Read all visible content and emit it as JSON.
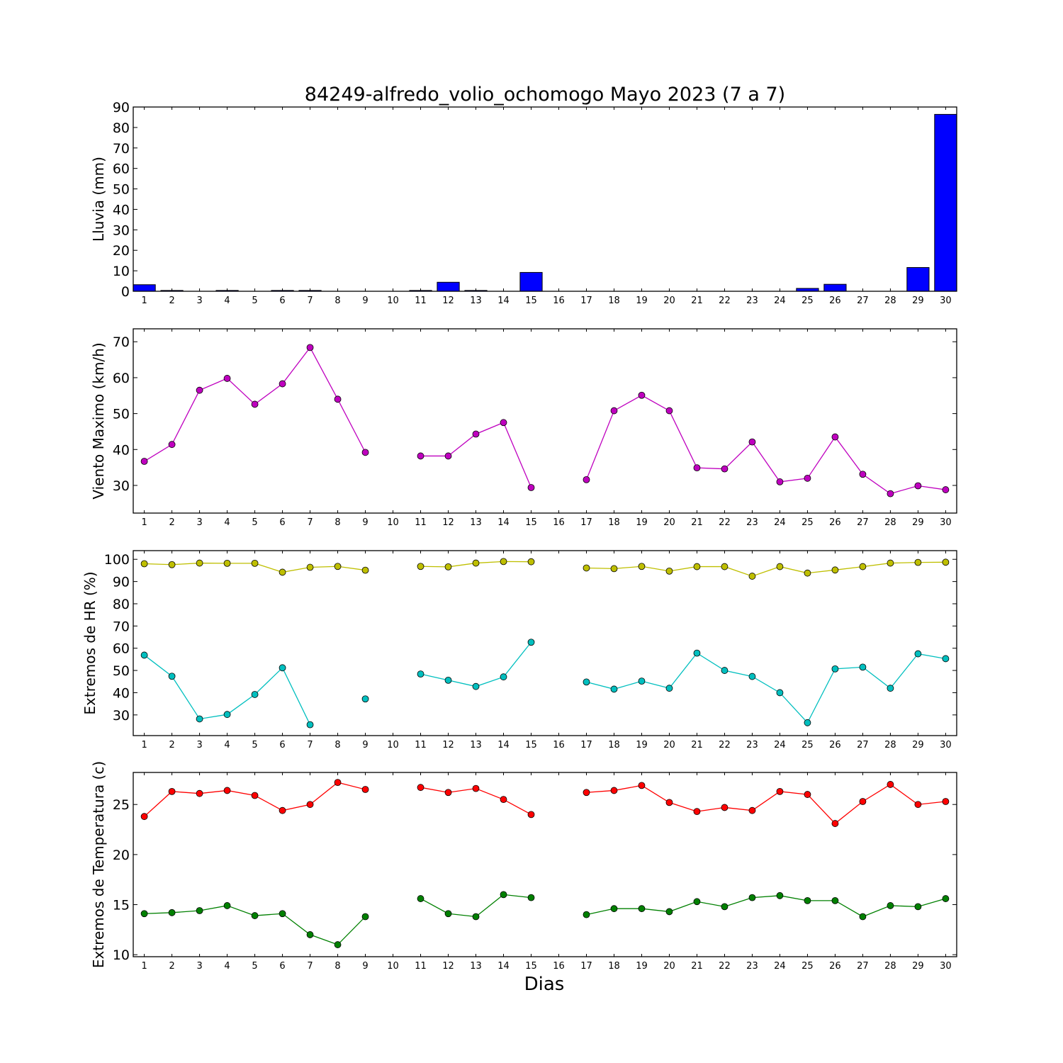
{
  "title": "84249-alfredo_volio_ochomogo Mayo 2023  (7 a 7)",
  "xlabel": "Dias",
  "chart_data": [
    {
      "type": "bar",
      "title": "84249-alfredo_volio_ochomogo Mayo 2023  (7 a 7)",
      "ylabel": "Lluvia (mm)",
      "xlabel": "",
      "x": [
        1,
        2,
        3,
        4,
        5,
        6,
        7,
        8,
        9,
        10,
        11,
        12,
        13,
        14,
        15,
        16,
        17,
        18,
        19,
        20,
        21,
        22,
        23,
        24,
        25,
        26,
        27,
        28,
        29,
        30
      ],
      "values": [
        3.2,
        0.4,
        0,
        0.4,
        0,
        0.4,
        0.4,
        0,
        0,
        0,
        0.4,
        4.4,
        0.4,
        0,
        9.2,
        0,
        0,
        0,
        0,
        0,
        0,
        0,
        0,
        0,
        1.4,
        3.4,
        0,
        0,
        11.6,
        86.4
      ],
      "ylim": [
        0,
        90
      ],
      "yticks": [
        0,
        10,
        20,
        30,
        40,
        50,
        60,
        70,
        80,
        90
      ],
      "grid": false,
      "color": "#0000ff"
    },
    {
      "type": "line",
      "ylabel": "Viento Maximo (km/h)",
      "x": [
        1,
        2,
        3,
        4,
        5,
        6,
        7,
        8,
        9,
        10,
        11,
        12,
        13,
        14,
        15,
        16,
        17,
        18,
        19,
        20,
        21,
        22,
        23,
        24,
        25,
        26,
        27,
        28,
        29,
        30
      ],
      "series": [
        {
          "color": "#bf00bf",
          "values": [
            36.7,
            41.4,
            56.5,
            59.8,
            52.6,
            58.3,
            68.4,
            54.0,
            39.2,
            null,
            38.2,
            38.2,
            44.3,
            47.5,
            29.4,
            null,
            31.6,
            50.8,
            55.1,
            50.8,
            34.9,
            34.6,
            42.1,
            31.0,
            32.0,
            43.5,
            33.1,
            27.7,
            29.9,
            28.8
          ]
        }
      ],
      "ylim": [
        22.3,
        73.6
      ],
      "yticks": [
        30,
        40,
        50,
        60,
        70
      ],
      "grid": false
    },
    {
      "type": "line",
      "ylabel": "Extremos de HR (%)",
      "x": [
        1,
        2,
        3,
        4,
        5,
        6,
        7,
        8,
        9,
        10,
        11,
        12,
        13,
        14,
        15,
        16,
        17,
        18,
        19,
        20,
        21,
        22,
        23,
        24,
        25,
        26,
        27,
        28,
        29,
        30
      ],
      "series": [
        {
          "color": "#bfbf00",
          "values": [
            98,
            97.6,
            98.3,
            98.2,
            98.2,
            94.2,
            96.4,
            96.8,
            95.1,
            null,
            96.8,
            96.6,
            98.3,
            99,
            98.9,
            null,
            96.1,
            95.8,
            96.8,
            94.7,
            96.7,
            96.7,
            92.4,
            96.7,
            93.8,
            95.2,
            96.7,
            98.3,
            98.6,
            98.7
          ]
        },
        {
          "color": "#00bfbf",
          "values": [
            56.9,
            47.4,
            28.2,
            30.2,
            39.2,
            51.2,
            25.6,
            null,
            37.2,
            null,
            48.4,
            45.6,
            42.8,
            47.1,
            62.7,
            null,
            44.8,
            41.6,
            45.2,
            42.0,
            57.8,
            50.0,
            47.3,
            40.0,
            26.5,
            50.7,
            51.5,
            42.0,
            57.5,
            55.3
          ]
        }
      ],
      "ylim": [
        20.7,
        103.9
      ],
      "yticks": [
        30,
        40,
        50,
        60,
        70,
        80,
        90,
        100
      ],
      "grid": false
    },
    {
      "type": "line",
      "ylabel": "Extremos de Temperatura (c)",
      "x": [
        1,
        2,
        3,
        4,
        5,
        6,
        7,
        8,
        9,
        10,
        11,
        12,
        13,
        14,
        15,
        16,
        17,
        18,
        19,
        20,
        21,
        22,
        23,
        24,
        25,
        26,
        27,
        28,
        29,
        30
      ],
      "series": [
        {
          "color": "#ff0000",
          "values": [
            23.8,
            26.3,
            26.1,
            26.4,
            25.9,
            24.4,
            25.0,
            27.2,
            26.5,
            null,
            26.7,
            26.2,
            26.6,
            25.5,
            24.0,
            null,
            26.2,
            26.4,
            26.9,
            25.2,
            24.3,
            24.7,
            24.4,
            26.3,
            26.0,
            23.1,
            25.3,
            27.0,
            25.0,
            25.3
          ]
        },
        {
          "color": "#008000",
          "values": [
            14.1,
            14.2,
            14.4,
            14.9,
            13.9,
            14.1,
            12.0,
            11.0,
            13.8,
            null,
            15.6,
            14.1,
            13.8,
            16.0,
            15.7,
            null,
            14.0,
            14.6,
            14.6,
            14.3,
            15.3,
            14.8,
            15.7,
            15.9,
            15.4,
            15.4,
            13.8,
            14.9,
            14.8,
            15.6
          ]
        }
      ],
      "ylim": [
        9.8,
        28.2
      ],
      "yticks": [
        10,
        15,
        20,
        25
      ],
      "grid": false
    }
  ]
}
